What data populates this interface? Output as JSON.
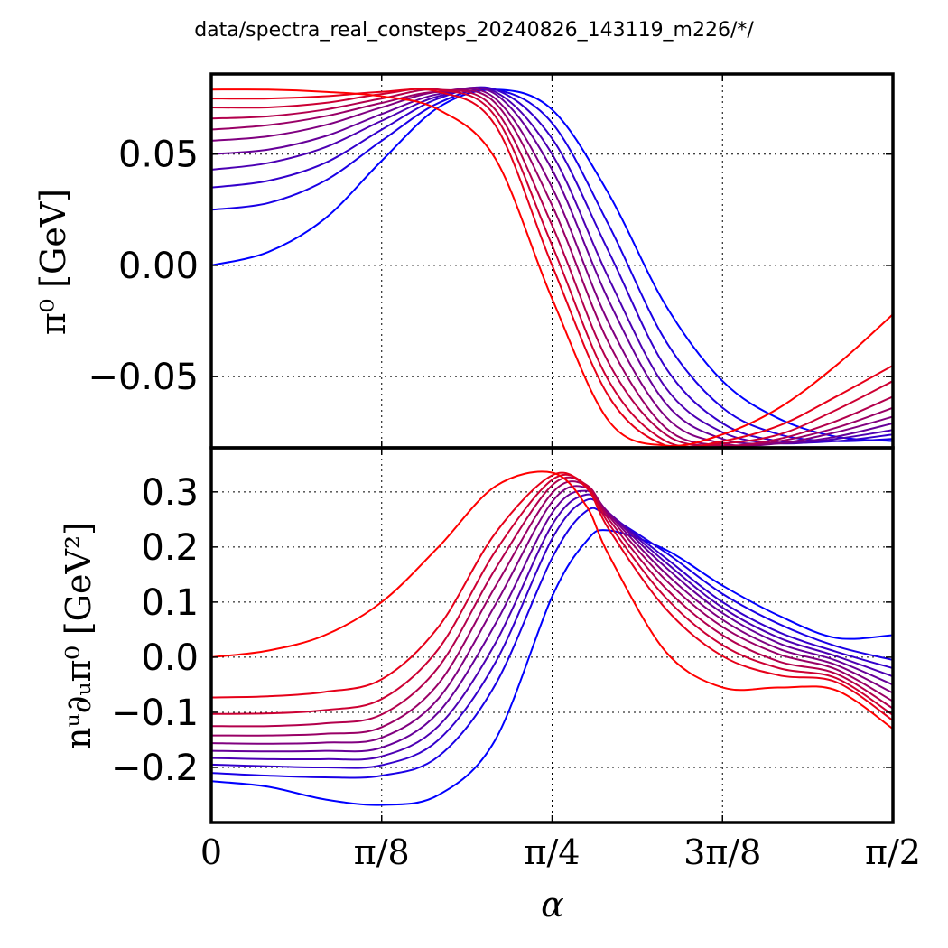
{
  "suptitle": "data/spectra_real_consteps_20240826_143119_m226/*/",
  "chart_data": [
    {
      "type": "line",
      "ylabel": "π⁰ [GeV]",
      "xlim": [
        0,
        1.5708
      ],
      "ylim": [
        -0.082,
        0.086
      ],
      "yticks": [
        -0.05,
        0.0,
        0.05
      ],
      "ytick_labels": [
        "−0.05",
        "0.00",
        "0.05"
      ],
      "grid": true,
      "x": [
        0.0,
        0.1309,
        0.2618,
        0.3927,
        0.5236,
        0.6545,
        0.7854,
        0.9163,
        1.0472,
        1.1781,
        1.309,
        1.4399,
        1.5708
      ],
      "series": [
        {
          "color": "#0000ff",
          "values": [
            0.0,
            0.006,
            0.021,
            0.047,
            0.071,
            0.079,
            0.07,
            0.032,
            -0.018,
            -0.052,
            -0.069,
            -0.077,
            -0.079
          ]
        },
        {
          "color": "#1900e6",
          "values": [
            0.025,
            0.028,
            0.038,
            0.056,
            0.073,
            0.079,
            0.064,
            0.018,
            -0.034,
            -0.064,
            -0.076,
            -0.079,
            -0.078
          ]
        },
        {
          "color": "#3300cc",
          "values": [
            0.035,
            0.038,
            0.046,
            0.061,
            0.075,
            0.079,
            0.057,
            0.006,
            -0.046,
            -0.071,
            -0.079,
            -0.079,
            -0.076
          ]
        },
        {
          "color": "#4c00b3",
          "values": [
            0.043,
            0.046,
            0.053,
            0.065,
            0.076,
            0.078,
            0.05,
            -0.006,
            -0.055,
            -0.075,
            -0.08,
            -0.078,
            -0.074
          ]
        },
        {
          "color": "#660099",
          "values": [
            0.05,
            0.052,
            0.058,
            0.068,
            0.077,
            0.077,
            0.043,
            -0.016,
            -0.062,
            -0.078,
            -0.08,
            -0.077,
            -0.071
          ]
        },
        {
          "color": "#800080",
          "values": [
            0.056,
            0.058,
            0.063,
            0.071,
            0.078,
            0.075,
            0.035,
            -0.026,
            -0.068,
            -0.08,
            -0.08,
            -0.075,
            -0.068
          ]
        },
        {
          "color": "#990066",
          "values": [
            0.061,
            0.063,
            0.067,
            0.073,
            0.078,
            0.073,
            0.027,
            -0.035,
            -0.073,
            -0.081,
            -0.079,
            -0.073,
            -0.064
          ]
        },
        {
          "color": "#b3004c",
          "values": [
            0.066,
            0.067,
            0.07,
            0.075,
            0.079,
            0.07,
            0.018,
            -0.044,
            -0.076,
            -0.081,
            -0.078,
            -0.07,
            -0.059
          ]
        },
        {
          "color": "#cc0033",
          "values": [
            0.071,
            0.071,
            0.073,
            0.077,
            0.079,
            0.067,
            0.009,
            -0.052,
            -0.079,
            -0.08,
            -0.076,
            -0.065,
            -0.052
          ]
        },
        {
          "color": "#e60019",
          "values": [
            0.075,
            0.075,
            0.076,
            0.078,
            0.078,
            0.063,
            0.0,
            -0.059,
            -0.081,
            -0.079,
            -0.072,
            -0.059,
            -0.045
          ]
        },
        {
          "color": "#ff0000",
          "values": [
            0.079,
            0.079,
            0.078,
            0.076,
            0.07,
            0.048,
            -0.015,
            -0.07,
            -0.081,
            -0.076,
            -0.064,
            -0.045,
            -0.022
          ]
        }
      ]
    },
    {
      "type": "line",
      "ylabel": "nᵘ∂ᵤπ⁰ [GeV²]",
      "xlabel": "α",
      "xlim": [
        0,
        1.5708
      ],
      "ylim": [
        -0.3,
        0.38
      ],
      "yticks": [
        -0.2,
        -0.1,
        0.0,
        0.1,
        0.2,
        0.3
      ],
      "ytick_labels": [
        "−0.2",
        "−0.1",
        "0.0",
        "0.1",
        "0.2",
        "0.3"
      ],
      "xticks": [
        0,
        0.3927,
        0.7854,
        1.1781,
        1.5708
      ],
      "xtick_labels": [
        "0",
        "π/8",
        "π/4",
        "3π/8",
        "π/2"
      ],
      "grid": true,
      "x": [
        0.0,
        0.1309,
        0.2618,
        0.3927,
        0.5236,
        0.6545,
        0.7854,
        0.8639,
        0.9163,
        1.0472,
        1.1781,
        1.309,
        1.4399,
        1.5708
      ],
      "series": [
        {
          "color": "#0000ff",
          "values": [
            -0.225,
            -0.235,
            -0.258,
            -0.268,
            -0.25,
            -0.15,
            0.11,
            0.21,
            0.23,
            0.195,
            0.13,
            0.075,
            0.035,
            0.04
          ]
        },
        {
          "color": "#1900e6",
          "values": [
            -0.21,
            -0.215,
            -0.218,
            -0.215,
            -0.18,
            -0.05,
            0.18,
            0.265,
            0.255,
            0.19,
            0.115,
            0.06,
            0.02,
            -0.005
          ]
        },
        {
          "color": "#3300cc",
          "values": [
            -0.195,
            -0.198,
            -0.2,
            -0.196,
            -0.15,
            -0.01,
            0.215,
            0.285,
            0.26,
            0.18,
            0.1,
            0.045,
            0.01,
            -0.02
          ]
        },
        {
          "color": "#4c00b3",
          "values": [
            -0.183,
            -0.185,
            -0.185,
            -0.18,
            -0.125,
            0.025,
            0.24,
            0.295,
            0.262,
            0.172,
            0.09,
            0.035,
            0.002,
            -0.035
          ]
        },
        {
          "color": "#660099",
          "values": [
            -0.17,
            -0.171,
            -0.17,
            -0.164,
            -0.1,
            0.06,
            0.262,
            0.302,
            0.262,
            0.163,
            0.08,
            0.025,
            -0.006,
            -0.05
          ]
        },
        {
          "color": "#800080",
          "values": [
            -0.156,
            -0.157,
            -0.155,
            -0.146,
            -0.075,
            0.095,
            0.282,
            0.308,
            0.26,
            0.152,
            0.068,
            0.015,
            -0.014,
            -0.065
          ]
        },
        {
          "color": "#990066",
          "values": [
            -0.142,
            -0.142,
            -0.139,
            -0.127,
            -0.048,
            0.128,
            0.298,
            0.312,
            0.256,
            0.14,
            0.055,
            0.005,
            -0.022,
            -0.08
          ]
        },
        {
          "color": "#b3004c",
          "values": [
            -0.125,
            -0.125,
            -0.12,
            -0.104,
            -0.018,
            0.16,
            0.312,
            0.313,
            0.25,
            0.125,
            0.04,
            -0.008,
            -0.03,
            -0.093
          ]
        },
        {
          "color": "#cc0033",
          "values": [
            -0.103,
            -0.102,
            -0.096,
            -0.076,
            0.015,
            0.192,
            0.322,
            0.312,
            0.242,
            0.108,
            0.022,
            -0.02,
            -0.038,
            -0.105
          ]
        },
        {
          "color": "#e60019",
          "values": [
            -0.073,
            -0.071,
            -0.063,
            -0.04,
            0.055,
            0.225,
            0.33,
            0.308,
            0.232,
            0.088,
            0.002,
            -0.033,
            -0.045,
            -0.115
          ]
        },
        {
          "color": "#ff0000",
          "values": [
            0.0,
            0.012,
            0.04,
            0.1,
            0.2,
            0.31,
            0.335,
            0.275,
            0.185,
            0.01,
            -0.055,
            -0.055,
            -0.06,
            -0.13
          ]
        }
      ]
    }
  ]
}
